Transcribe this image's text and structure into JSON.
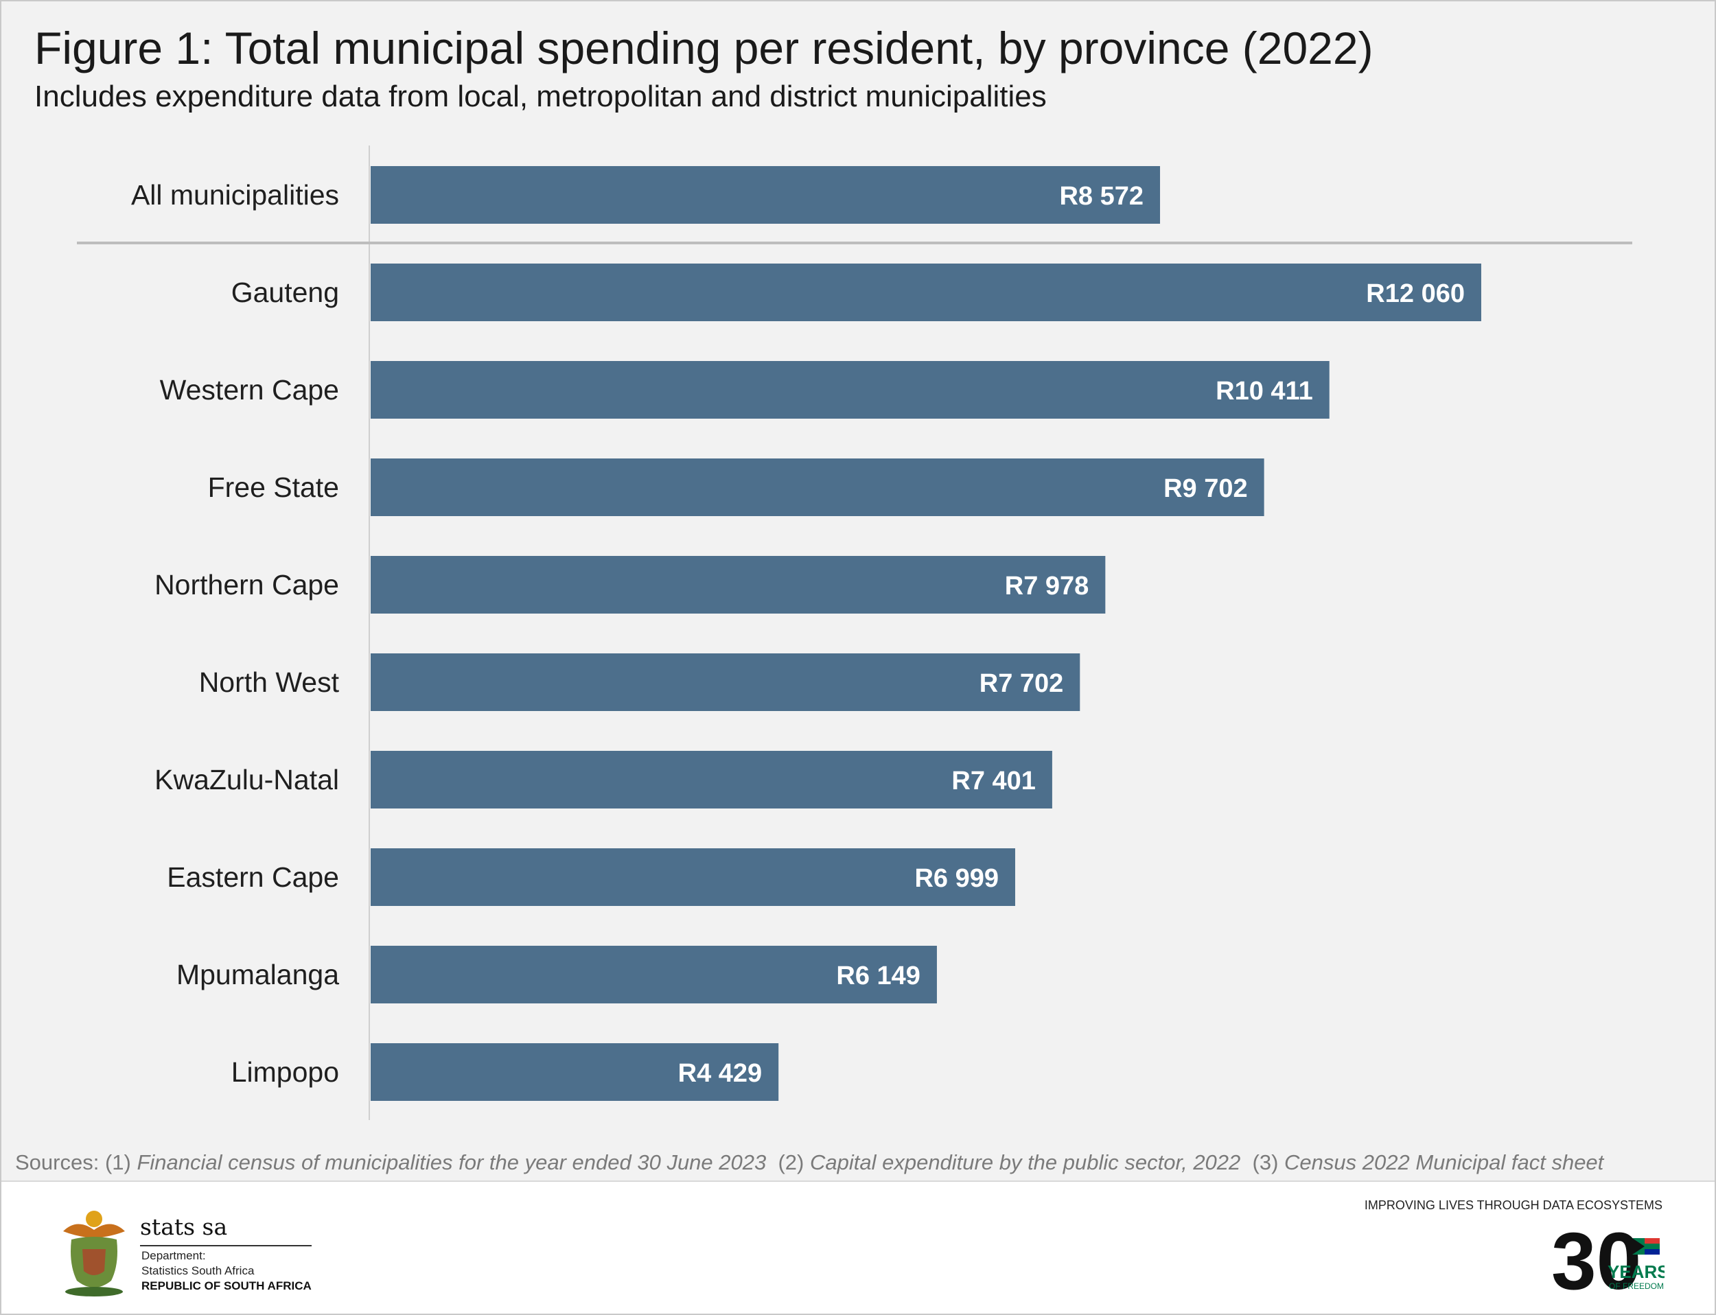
{
  "header": {
    "title": "Figure 1: Total municipal spending per resident, by province (2022)",
    "subtitle": "Includes expenditure data from local, metropolitan and district municipalities"
  },
  "chart_data": {
    "type": "bar",
    "orientation": "horizontal",
    "categories": [
      "All municipalities",
      "Gauteng",
      "Western Cape",
      "Free State",
      "Northern Cape",
      "North West",
      "KwaZulu-Natal",
      "Eastern Cape",
      "Mpumalanga",
      "Limpopo"
    ],
    "values": [
      8572,
      12060,
      10411,
      9702,
      7978,
      7702,
      7401,
      6999,
      6149,
      4429
    ],
    "value_labels": [
      "R8 572",
      "R12 060",
      "R10 411",
      "R9 702",
      "R7 978",
      "R7 702",
      "R7 401",
      "R6 999",
      "R6 149",
      "R4 429"
    ],
    "xlim": [
      0,
      13700
    ],
    "grid": false,
    "bar_color": "#4d6f8c",
    "separator_after_index": 0
  },
  "sources": {
    "prefix": "Sources: (1) ",
    "s1": "Financial census of municipalities for the year ended 30 June 2023",
    "sep2": "(2) ",
    "s2": "Capital expenditure by the public sector, 2022",
    "sep3": "(3) ",
    "s3": "Census 2022 Municipal fact sheet"
  },
  "footer": {
    "org_name": "stats sa",
    "dept": "Department:",
    "unit": "Statistics South Africa",
    "country": "REPUBLIC OF SOUTH AFRICA",
    "tagline": "IMPROVING LIVES THROUGH DATA ECOSYSTEMS",
    "badge_number": "30",
    "badge_years": "YEARS",
    "badge_freedom": "OF FREEDOM",
    "coat_icon": "coat-of-arms-icon",
    "badge_icon": "30-years-freedom-logo"
  }
}
